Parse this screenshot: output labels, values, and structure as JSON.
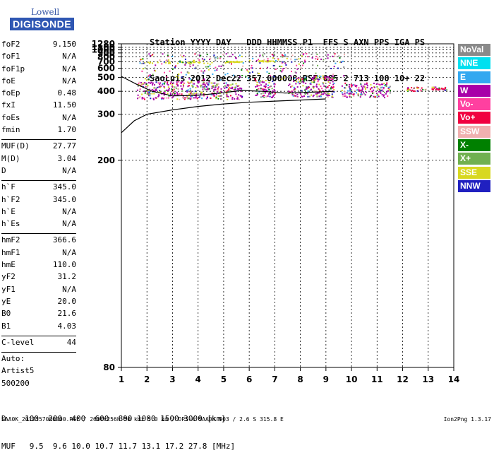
{
  "logo": {
    "top": "Lowell",
    "brand": "DIGISONDE"
  },
  "header": {
    "line1": "Station YYYY DAY   DDD HHMMSS P1  FFS S AXN PPS IGA PS",
    "line2": "SaoLuis 2012 Dec22 357 000000 RSF 005 2 713 100 10+ 22"
  },
  "params": [
    {
      "name": "foF2",
      "value": "9.150"
    },
    {
      "name": "foF1",
      "value": "N/A"
    },
    {
      "name": "foF1p",
      "value": "N/A"
    },
    {
      "name": "foE",
      "value": "N/A"
    },
    {
      "name": "foEp",
      "value": "0.48"
    },
    {
      "name": "fxI",
      "value": "11.50"
    },
    {
      "name": "foEs",
      "value": "N/A"
    },
    {
      "name": "fmin",
      "value": "1.70"
    },
    {
      "sep": true
    },
    {
      "name": "MUF(D)",
      "value": "27.77"
    },
    {
      "name": "M(D)",
      "value": "3.04"
    },
    {
      "name": "D",
      "value": "N/A"
    },
    {
      "sep": true
    },
    {
      "name": "h`F",
      "value": "345.0"
    },
    {
      "name": "h`F2",
      "value": "345.0"
    },
    {
      "name": "h`E",
      "value": "N/A"
    },
    {
      "name": "h`Es",
      "value": "N/A"
    },
    {
      "sep": true
    },
    {
      "name": "hmF2",
      "value": "366.6"
    },
    {
      "name": "hmF1",
      "value": "N/A"
    },
    {
      "name": "hmE",
      "value": "110.0"
    },
    {
      "name": "yF2",
      "value": "31.2"
    },
    {
      "name": "yF1",
      "value": "N/A"
    },
    {
      "name": "yE",
      "value": "20.0"
    },
    {
      "name": "B0",
      "value": "21.6"
    },
    {
      "name": "B1",
      "value": "4.03"
    },
    {
      "sep": true
    },
    {
      "name": "C-level",
      "value": "44"
    },
    {
      "sep": true
    },
    {
      "text": "Auto:"
    },
    {
      "text": "Artist5"
    },
    {
      "text": "500200"
    }
  ],
  "legend": [
    {
      "label": "NoVal",
      "color": "#8a8a8a"
    },
    {
      "label": "NNE",
      "color": "#00e0f0"
    },
    {
      "label": "E",
      "color": "#33a8f0"
    },
    {
      "label": "W",
      "color": "#a800a8"
    },
    {
      "label": "Vo-",
      "color": "#ff40a0"
    },
    {
      "label": "Vo+",
      "color": "#f00040"
    },
    {
      "label": "SSW",
      "color": "#f0b0b0"
    },
    {
      "label": "X-",
      "color": "#008000"
    },
    {
      "label": "X+",
      "color": "#70b050"
    },
    {
      "label": "SSE",
      "color": "#d8d820"
    },
    {
      "label": "NNW",
      "color": "#2020c0"
    }
  ],
  "bottom": {
    "d_line": "D    100  200  400  600  800 1000 1500 3000 [km]",
    "muf_line": "MUF   9.5  9.6 10.0 10.7 11.7 13.1 17.2 27.8 [MHz]"
  },
  "footer": {
    "left": "SAA0K_2012357000000.RSF / 260fx256h 50 kHz 5.0 km / DPS-4 SAA0K 903 / 2.6 S 315.8 E",
    "right": "Ion2Png 1.3.17"
  },
  "chart_data": {
    "type": "scatter",
    "xlabel": "",
    "ylabel": "",
    "x_ticks": [
      1,
      2,
      3,
      4,
      5,
      6,
      7,
      8,
      9,
      10,
      11,
      12,
      13,
      14
    ],
    "y_ticks": [
      80,
      200,
      300,
      400,
      500,
      600,
      700,
      800,
      900,
      1000,
      1100,
      1280
    ],
    "xlim": [
      1,
      14
    ],
    "ylim": [
      80,
      1280
    ],
    "y_scale": "reciprocal",
    "grid": true,
    "legend_position": "right",
    "clusters": [
      {
        "name": "SSE",
        "color": "#d8d820",
        "x": [
          1.55,
          4.6
        ],
        "y": [
          680,
          710
        ]
      },
      {
        "name": "SSE",
        "color": "#d8d820",
        "x": [
          5.1,
          5.7
        ],
        "y": [
          700,
          720
        ]
      },
      {
        "name": "SSE",
        "color": "#d8d820",
        "x": [
          6.3,
          6.95
        ],
        "y": [
          710,
          730
        ]
      },
      {
        "name": "mixed",
        "color": "#a800a8",
        "x": [
          1.6,
          4.9
        ],
        "y": [
          360,
          470
        ]
      },
      {
        "name": "mixed",
        "color": "#a800a8",
        "x": [
          5.0,
          5.7
        ],
        "y": [
          360,
          460
        ]
      },
      {
        "name": "mixed",
        "color": "#a800a8",
        "x": [
          6.2,
          7.0
        ],
        "y": [
          370,
          480
        ]
      },
      {
        "name": "mixed",
        "color": "#a800a8",
        "x": [
          7.5,
          9.3
        ],
        "y": [
          370,
          520
        ]
      },
      {
        "name": "mixed",
        "color": "#a800a8",
        "x": [
          9.6,
          11.5
        ],
        "y": [
          370,
          460
        ]
      },
      {
        "name": "mixed",
        "color": "#f00040",
        "x": [
          12.1,
          12.9
        ],
        "y": [
          405,
          430
        ]
      },
      {
        "name": "mixed",
        "color": "#f00040",
        "x": [
          13.1,
          13.7
        ],
        "y": [
          410,
          430
        ]
      }
    ],
    "curves": [
      {
        "name": "trace",
        "x": [
          1.0,
          1.5,
          2.0,
          3.0,
          4.0,
          5.0,
          6.0,
          7.0,
          8.0,
          9.0
        ],
        "y": [
          250,
          280,
          300,
          315,
          328,
          338,
          345,
          350,
          355,
          360
        ]
      },
      {
        "name": "trace",
        "x": [
          1.0,
          1.6,
          2.2,
          3.0,
          4.0,
          5.0,
          5.7,
          6.5,
          7.4,
          8.5,
          9.3
        ],
        "y": [
          510,
          445,
          400,
          375,
          378,
          392,
          405,
          400,
          390,
          395,
          400
        ]
      }
    ]
  }
}
